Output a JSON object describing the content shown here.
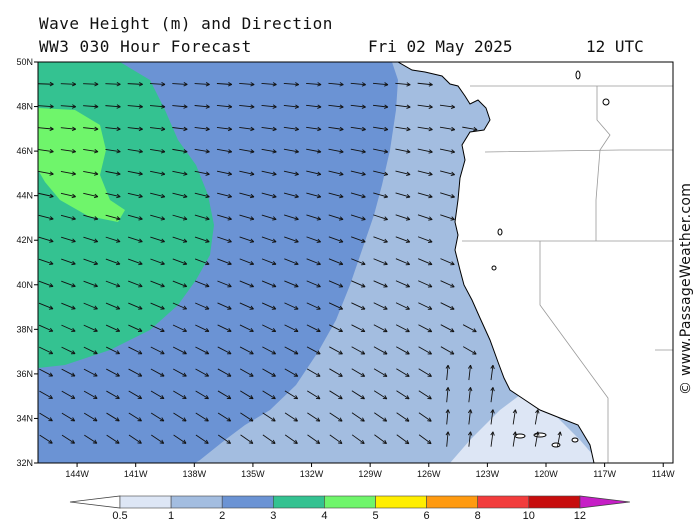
{
  "header": {
    "title": "Wave Height (m) and Direction",
    "subtitle": "WW3 030 Hour Forecast",
    "date": "Fri 02 May 2025",
    "time": "12 UTC"
  },
  "credit": "© www.PassageWeather.com",
  "axes": {
    "lat_labels": [
      "50N",
      "48N",
      "46N",
      "44N",
      "42N",
      "40N",
      "38N",
      "36N",
      "34N",
      "32N"
    ],
    "lat_values": [
      50,
      48,
      46,
      44,
      42,
      40,
      38,
      36,
      34,
      32
    ],
    "lon_labels": [
      "144W",
      "141W",
      "138W",
      "135W",
      "132W",
      "129W",
      "126W",
      "123W",
      "120W",
      "117W",
      "114W"
    ],
    "lon_values": [
      -144,
      -141,
      -138,
      -135,
      -132,
      -129,
      -126,
      -123,
      -120,
      -117,
      -114
    ],
    "lat_range": [
      32,
      50
    ],
    "lon_range": [
      -146,
      -113.5
    ]
  },
  "colorbar": {
    "labels": [
      "0.5",
      "1",
      "2",
      "3",
      "4",
      "5",
      "6",
      "8",
      "10",
      "12"
    ],
    "colors": [
      "#dde6f5",
      "#a3bde0",
      "#6b93d4",
      "#34c291",
      "#6ff56b",
      "#ffee00",
      "#ff9a10",
      "#f23c3c",
      "#c70d0d",
      "#c61ec6"
    ],
    "under_color": "#ffffff"
  },
  "colors": {
    "land": "#ffffff",
    "coast": "#000000",
    "border": "#888888",
    "arrow": "#111111"
  }
}
